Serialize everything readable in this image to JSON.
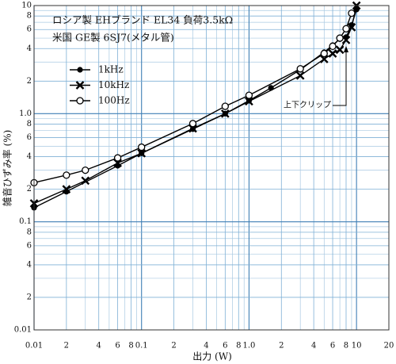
{
  "chart_data": {
    "type": "line",
    "annotations": [
      "ロシア製 EHブランド EL34 負荷3.5kΩ",
      "米国 GE製 6SJ7(メタル管)",
      "上下クリップ"
    ],
    "x_label": "出力 (W)",
    "y_label": "雑音ひずみ率 (%)",
    "xscale": "log",
    "yscale": "log",
    "grid": true,
    "legend": "upper left",
    "xlim": [
      0.01,
      20
    ],
    "ylim": [
      0.01,
      10
    ],
    "xticks": [
      0.01,
      {
        "value": 0.02,
        "label": "2"
      },
      {
        "value": 0.04,
        "label": "4"
      },
      {
        "value": 0.06,
        "label": "6"
      },
      {
        "value": 0.08,
        "label": "8"
      },
      0.1,
      {
        "value": 0.2,
        "label": "2"
      },
      {
        "value": 0.4,
        "label": "4"
      },
      {
        "value": 0.6,
        "label": "6"
      },
      {
        "value": 0.8,
        "label": "8"
      },
      {
        "value": 1,
        "label": "1.0"
      },
      {
        "value": 2,
        "label": "2"
      },
      {
        "value": 4,
        "label": "4"
      },
      {
        "value": 6,
        "label": "6"
      },
      {
        "value": 8,
        "label": "8"
      },
      10,
      20
    ],
    "yticks": [
      0.01,
      {
        "value": 0.02,
        "label": "2"
      },
      {
        "value": 0.04,
        "label": "4"
      },
      {
        "value": 0.06,
        "label": "6"
      },
      {
        "value": 0.08,
        "label": "8"
      },
      0.1,
      {
        "value": 0.2,
        "label": "2"
      },
      {
        "value": 0.4,
        "label": "4"
      },
      {
        "value": 0.6,
        "label": "6"
      },
      {
        "value": 0.8,
        "label": "8"
      },
      {
        "value": 1,
        "label": "1.0"
      },
      {
        "value": 2,
        "label": "2"
      },
      {
        "value": 4,
        "label": "4"
      },
      {
        "value": 6,
        "label": "6"
      },
      {
        "value": 8,
        "label": "8"
      },
      10
    ],
    "xminor": [
      0.03,
      0.05,
      0.07,
      0.09,
      0.3,
      0.5,
      0.7,
      0.9,
      3,
      5,
      7,
      9
    ],
    "yminor": [
      0.03,
      0.05,
      0.07,
      0.09,
      0.3,
      0.5,
      0.7,
      0.9,
      3,
      5,
      7,
      9
    ],
    "series": [
      {
        "name": "1kHz",
        "color": "#000000",
        "marker": "circle-filled",
        "x": [
          0.01,
          0.02,
          0.06,
          0.1,
          0.3,
          0.6,
          1,
          1.6,
          3,
          5,
          6,
          7,
          8,
          9,
          10
        ],
        "values": [
          0.135,
          0.19,
          0.33,
          0.43,
          0.72,
          1.0,
          1.32,
          1.73,
          2.55,
          3.7,
          4.3,
          4.9,
          5.1,
          6.6,
          9.2
        ]
      },
      {
        "name": "10kHz",
        "color": "#000000",
        "marker": "x",
        "x": [
          0.01,
          0.02,
          0.03,
          0.06,
          0.1,
          0.3,
          0.6,
          1,
          3,
          5,
          6,
          7,
          8,
          9,
          10
        ],
        "values": [
          0.148,
          0.2,
          0.24,
          0.35,
          0.43,
          0.73,
          1.0,
          1.3,
          2.25,
          3.2,
          3.6,
          3.9,
          4.8,
          6.3,
          10
        ]
      },
      {
        "name": "100Hz",
        "color": "#000000",
        "marker": "circle-open",
        "x": [
          0.01,
          0.02,
          0.03,
          0.06,
          0.1,
          0.3,
          0.6,
          1,
          3,
          5,
          6,
          7,
          8,
          9
        ],
        "values": [
          0.23,
          0.27,
          0.3,
          0.39,
          0.49,
          0.81,
          1.17,
          1.48,
          2.6,
          3.6,
          4.2,
          5.0,
          6.1,
          8.5
        ]
      }
    ]
  }
}
